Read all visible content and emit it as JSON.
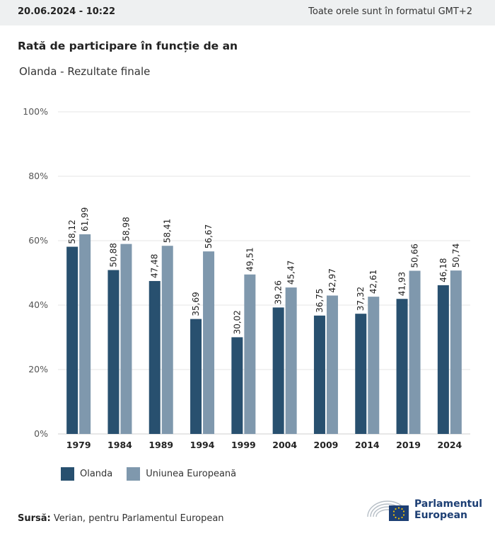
{
  "header": {
    "timestamp": "20.06.2024 - 10:22",
    "timezone_note": "Toate orele sunt în formatul GMT+2"
  },
  "chart_title": "Rată de participare în funcție de an",
  "chart_subtitle": "Olanda - Rezultate finale",
  "colors": {
    "series1": "#28506f",
    "series2": "#7f98ad",
    "grid": "#e4e4e4",
    "brand": "#1d3f74"
  },
  "chart_data": {
    "type": "bar",
    "categories": [
      "1979",
      "1984",
      "1989",
      "1994",
      "1999",
      "2004",
      "2009",
      "2014",
      "2019",
      "2024"
    ],
    "series": [
      {
        "name": "Olanda",
        "values": [
          58.12,
          50.88,
          47.48,
          35.69,
          30.02,
          39.26,
          36.75,
          37.32,
          41.93,
          46.18
        ],
        "labels": [
          "58,12",
          "50,88",
          "47,48",
          "35,69",
          "30,02",
          "39,26",
          "36,75",
          "37,32",
          "41,93",
          "46,18"
        ]
      },
      {
        "name": "Uniunea Europeană",
        "values": [
          61.99,
          58.98,
          58.41,
          56.67,
          49.51,
          45.47,
          42.97,
          42.61,
          50.66,
          50.74
        ],
        "labels": [
          "61,99",
          "58,98",
          "58,41",
          "56,67",
          "49,51",
          "45,47",
          "42,97",
          "42,61",
          "50,66",
          "50,74"
        ]
      }
    ],
    "ylim": [
      0,
      100
    ],
    "yticks": [
      "0%",
      "20%",
      "40%",
      "60%",
      "80%",
      "100%"
    ],
    "grid": true,
    "legend": "bottom-left"
  },
  "footer": {
    "source_label": "Sursă:",
    "source_text": "Verian, pentru Parlamentul European",
    "logo_line1": "Parlamentul",
    "logo_line2": "European"
  }
}
